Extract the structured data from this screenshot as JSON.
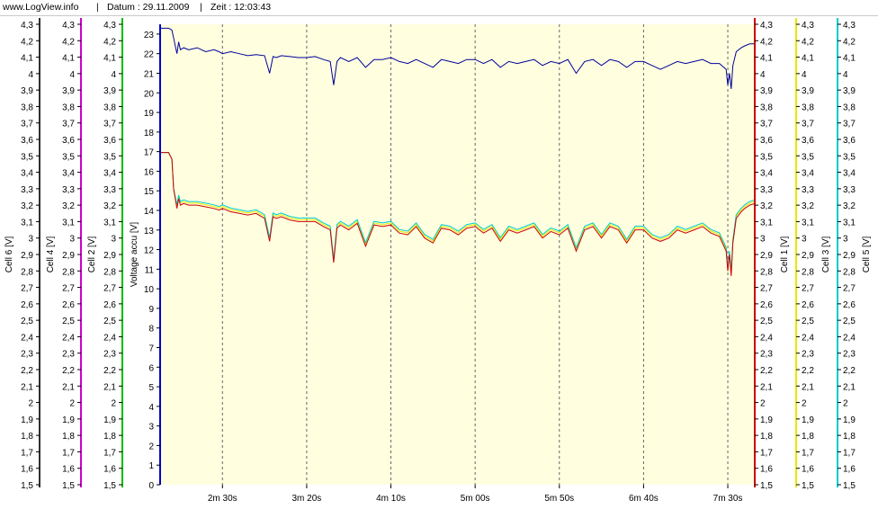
{
  "header": {
    "site": "www.LogView.info",
    "sep1": "|",
    "date": "Datum : 29.11.2009",
    "sep2": "|",
    "time": "Zeit : 12:03:43"
  },
  "chart_data": {
    "type": "line",
    "title": "",
    "grid": true,
    "background_color": "#ffffe0",
    "x": {
      "label": "",
      "tick_labels": [
        "2m 30s",
        "3m 20s",
        "4m 10s",
        "5m 00s",
        "5m 50s",
        "6m 40s",
        "7m 30s"
      ],
      "tick_seconds": [
        150,
        200,
        250,
        300,
        350,
        400,
        450
      ],
      "range_seconds": [
        113,
        466
      ]
    },
    "voltage_axis": {
      "label": "Voltage accu [V]",
      "color": "#0000cc",
      "ylim": [
        0,
        23.5
      ],
      "ticks": [
        0,
        1,
        2,
        3,
        4,
        5,
        6,
        7,
        8,
        9,
        10,
        11,
        12,
        13,
        14,
        15,
        16,
        17,
        18,
        19,
        20,
        21,
        22,
        23
      ]
    },
    "cell_axes": {
      "ylim": [
        1.5,
        4.3
      ],
      "ticks": [
        "1,5",
        "1,6",
        "1,7",
        "1,8",
        "1,9",
        "2",
        "2,1",
        "2,2",
        "2,3",
        "2,4",
        "2,5",
        "2,6",
        "2,7",
        "2,8",
        "2,9",
        "3",
        "3,1",
        "3,2",
        "3,3",
        "3,4",
        "3,5",
        "3,6",
        "3,7",
        "3,8",
        "3,9",
        "4",
        "4,1",
        "4,2",
        "4,3"
      ],
      "left": [
        {
          "name": "Cell 6 [V]",
          "color": "#303030"
        },
        {
          "name": "Cell 4 [V]",
          "color": "#cc00cc"
        },
        {
          "name": "Cell 2 [V]",
          "color": "#00bb00"
        }
      ],
      "right": [
        {
          "name": "Cell 1 [V]",
          "color": "#cc0000"
        },
        {
          "name": "Cell 3 [V]",
          "color": "#e8e800"
        },
        {
          "name": "Cell 5 [V]",
          "color": "#00cccc"
        }
      ]
    },
    "series": [
      {
        "axis": "voltage",
        "color": "#000099",
        "x_seconds": [
          113,
          118,
          120,
          121,
          123,
          124,
          125,
          127,
          130,
          135,
          140,
          145,
          148,
          150,
          155,
          160,
          165,
          170,
          175,
          178,
          180,
          182,
          185,
          190,
          195,
          200,
          205,
          210,
          214,
          216,
          218,
          220,
          225,
          230,
          235,
          240,
          245,
          250,
          255,
          260,
          265,
          270,
          275,
          280,
          285,
          290,
          295,
          300,
          305,
          310,
          315,
          320,
          325,
          330,
          335,
          340,
          345,
          350,
          355,
          360,
          365,
          370,
          375,
          380,
          385,
          390,
          395,
          400,
          405,
          410,
          415,
          420,
          425,
          430,
          435,
          440,
          445,
          449,
          450,
          451,
          452,
          453,
          455,
          458,
          460,
          463,
          466
        ],
        "values": [
          23.3,
          23.3,
          23.2,
          22.8,
          22.0,
          22.6,
          22.2,
          22.3,
          22.2,
          22.3,
          22.1,
          22.2,
          22.1,
          22.0,
          22.1,
          22.0,
          21.9,
          21.95,
          21.9,
          21.0,
          21.85,
          21.8,
          21.9,
          21.85,
          21.8,
          21.8,
          21.85,
          21.7,
          21.6,
          20.4,
          21.6,
          21.8,
          21.6,
          21.8,
          21.3,
          21.7,
          21.7,
          21.8,
          21.6,
          21.5,
          21.7,
          21.5,
          21.3,
          21.7,
          21.6,
          21.5,
          21.7,
          21.7,
          21.5,
          21.7,
          21.3,
          21.6,
          21.5,
          21.6,
          21.7,
          21.4,
          21.6,
          21.5,
          21.7,
          21.0,
          21.6,
          21.7,
          21.4,
          21.7,
          21.6,
          21.3,
          21.6,
          21.6,
          21.4,
          21.2,
          21.4,
          21.6,
          21.5,
          21.6,
          21.7,
          21.5,
          21.5,
          21.2,
          20.4,
          21.0,
          20.2,
          21.4,
          22.1,
          22.3,
          22.4,
          22.5,
          22.5
        ]
      },
      {
        "axis": "cell",
        "name": "Cell 1 [V]",
        "color": "#cc0000",
        "x_seconds": [
          113,
          118,
          120,
          121,
          123,
          124,
          125,
          127,
          130,
          135,
          140,
          145,
          148,
          150,
          155,
          160,
          165,
          170,
          175,
          178,
          180,
          182,
          185,
          190,
          195,
          200,
          205,
          210,
          214,
          216,
          218,
          220,
          225,
          230,
          235,
          240,
          245,
          250,
          255,
          260,
          265,
          270,
          275,
          280,
          285,
          290,
          295,
          300,
          305,
          310,
          315,
          320,
          325,
          330,
          335,
          340,
          345,
          350,
          355,
          360,
          365,
          370,
          375,
          380,
          385,
          390,
          395,
          400,
          405,
          410,
          415,
          420,
          425,
          430,
          435,
          440,
          445,
          449,
          450,
          451,
          452,
          453,
          455,
          458,
          460,
          463,
          466
        ],
        "values": [
          3.52,
          3.52,
          3.48,
          3.3,
          3.18,
          3.24,
          3.2,
          3.21,
          3.2,
          3.2,
          3.19,
          3.18,
          3.17,
          3.18,
          3.16,
          3.15,
          3.14,
          3.15,
          3.12,
          2.98,
          3.13,
          3.12,
          3.13,
          3.11,
          3.1,
          3.1,
          3.1,
          3.07,
          3.05,
          2.85,
          3.06,
          3.08,
          3.05,
          3.09,
          2.95,
          3.08,
          3.07,
          3.08,
          3.03,
          3.02,
          3.07,
          3.0,
          2.97,
          3.06,
          3.05,
          3.02,
          3.06,
          3.07,
          3.03,
          3.06,
          2.98,
          3.05,
          3.03,
          3.05,
          3.07,
          3.0,
          3.04,
          3.02,
          3.06,
          2.92,
          3.05,
          3.07,
          3.0,
          3.07,
          3.05,
          2.97,
          3.05,
          3.05,
          3.0,
          2.98,
          3.0,
          3.05,
          3.03,
          3.05,
          3.07,
          3.03,
          3.01,
          2.92,
          2.8,
          2.9,
          2.77,
          2.97,
          3.12,
          3.16,
          3.18,
          3.2,
          3.21
        ]
      },
      {
        "axis": "cell",
        "name": "Cell 3 [V]",
        "color": "#e8e800",
        "x_seconds": [
          113,
          466
        ],
        "values": [
          3.52,
          3.22
        ]
      },
      {
        "axis": "cell",
        "name": "Cell 5 [V]",
        "color": "#00cccc",
        "x_seconds": [
          113,
          466
        ],
        "values": [
          3.52,
          3.23
        ]
      }
    ]
  }
}
